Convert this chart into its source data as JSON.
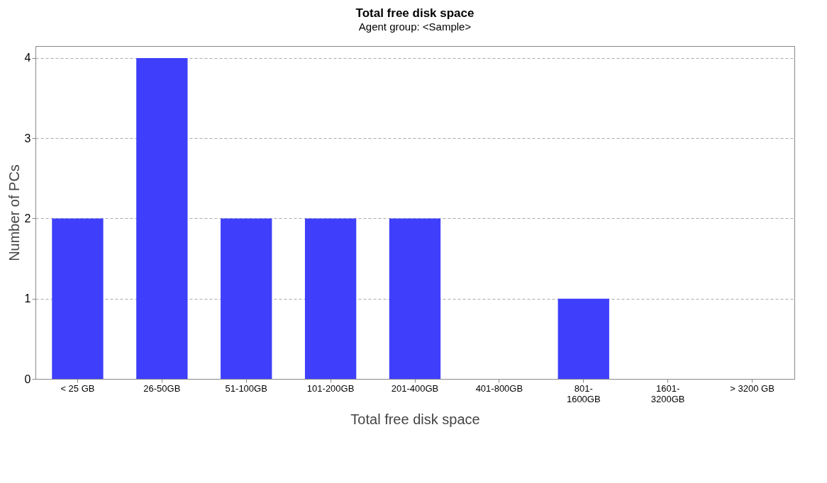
{
  "chart_data": {
    "type": "bar",
    "title": "Total free disk space",
    "subtitle": "Agent group: <Sample>",
    "xlabel": "Total free disk space",
    "ylabel": "Number of PCs",
    "categories": [
      "< 25 GB",
      "26-50GB",
      "51-100GB",
      "101-200GB",
      "201-400GB",
      "401-800GB",
      "801-1600GB",
      "1601-3200GB",
      "> 3200 GB"
    ],
    "values": [
      2,
      4,
      2,
      2,
      2,
      0,
      1,
      0,
      0
    ],
    "color": "#3f3ffb",
    "ylim": [
      0,
      4.15
    ],
    "yticks": [
      0,
      1,
      2,
      3,
      4
    ],
    "grid": "y"
  }
}
